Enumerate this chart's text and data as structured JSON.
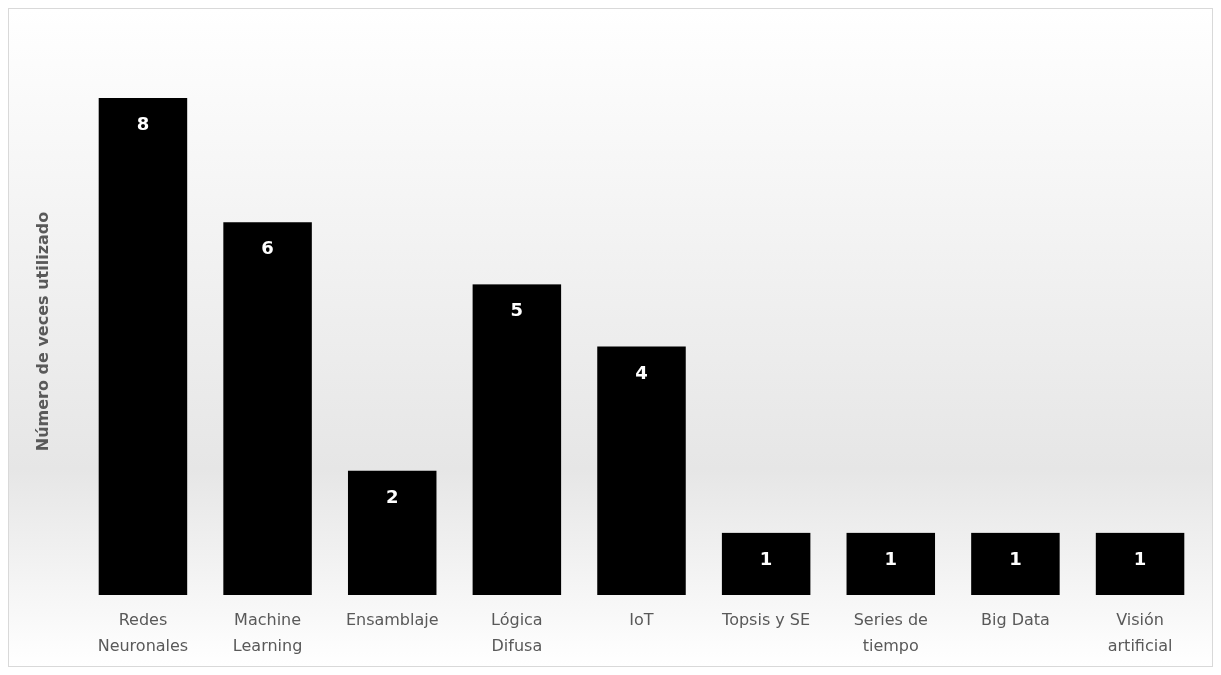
{
  "chart_data": {
    "type": "bar",
    "ylabel": "Número de veces utilizado",
    "categories": [
      "Redes Neuronales",
      "Machine Learning",
      "Ensamblaje",
      "Lógica Difusa",
      "IoT",
      "Topsis y SE",
      "Series de tiempo",
      "Big Data",
      "Visión artificial"
    ],
    "values": [
      8,
      6,
      2,
      5,
      4,
      1,
      1,
      1,
      1
    ],
    "color": "#000000",
    "data_labels": true
  }
}
